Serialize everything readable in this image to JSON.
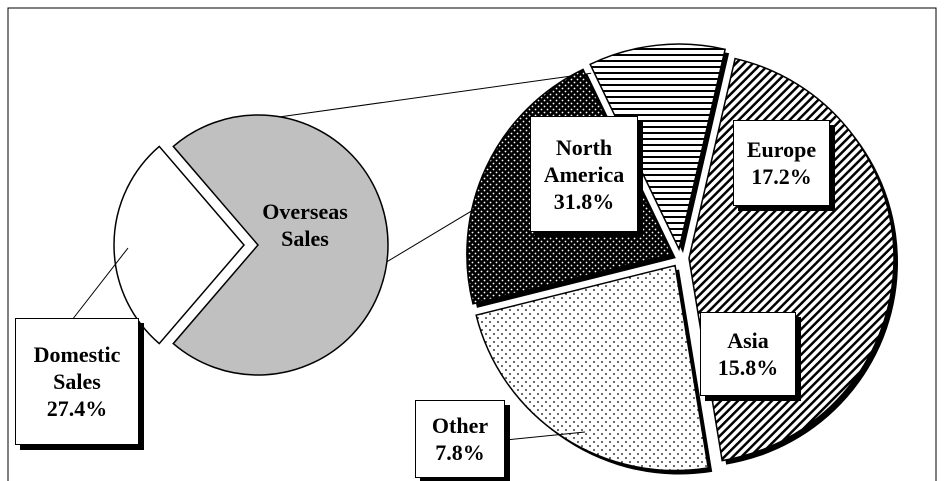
{
  "chart_data": {
    "type": "pie-of-pie",
    "pies": [
      {
        "categories": [
          "Domestic Sales",
          "Overseas Sales"
        ],
        "values": [
          27.4,
          72.6
        ],
        "value_labels": [
          "27.4%",
          null
        ],
        "colors": [
          "#ffffff",
          "#c0c0c0"
        ]
      },
      {
        "categories": [
          "North America",
          "Europe",
          "Asia",
          "Other"
        ],
        "values": [
          31.8,
          17.2,
          15.8,
          7.8
        ],
        "value_labels": [
          "31.8%",
          "17.2%",
          "15.8%",
          "7.8%"
        ],
        "patterns": [
          "diagonal",
          "dots",
          "dense-dots",
          "horizontal"
        ]
      }
    ]
  }
}
